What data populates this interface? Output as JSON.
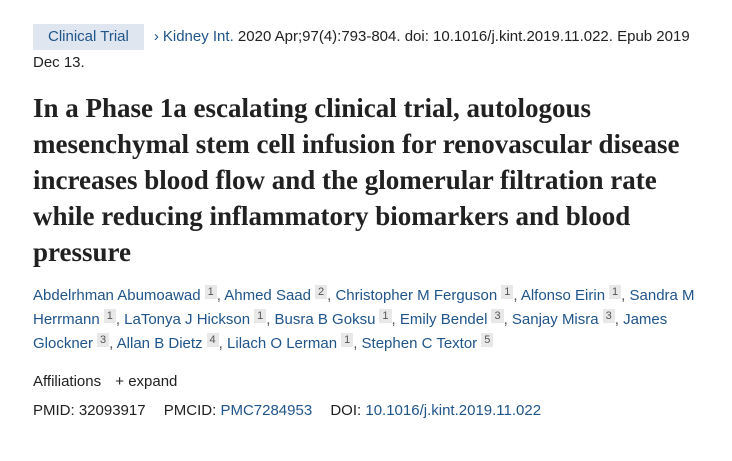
{
  "header": {
    "badge": "Clinical Trial",
    "journal": "Kidney Int.",
    "citation": " 2020 Apr;97(4):793-804. doi: 10.1016/j.kint.2019.11.022. Epub 2019 Dec 13."
  },
  "title": "In a Phase 1a escalating clinical trial, autologous mesenchymal stem cell infusion for renovascular disease increases blood flow and the glomerular filtration rate while reducing inflammatory biomarkers and blood pressure",
  "authors": [
    {
      "name": "Abdelrhman Abumoawad",
      "aff": "1"
    },
    {
      "name": "Ahmed Saad",
      "aff": "2"
    },
    {
      "name": "Christopher M Ferguson",
      "aff": "1"
    },
    {
      "name": "Alfonso Eirin",
      "aff": "1"
    },
    {
      "name": "Sandra M Herrmann",
      "aff": "1"
    },
    {
      "name": "LaTonya J Hickson",
      "aff": "1"
    },
    {
      "name": "Busra B Goksu",
      "aff": "1"
    },
    {
      "name": "Emily Bendel",
      "aff": "3"
    },
    {
      "name": "Sanjay Misra",
      "aff": "3"
    },
    {
      "name": "James Glockner",
      "aff": "3"
    },
    {
      "name": "Allan B Dietz",
      "aff": "4"
    },
    {
      "name": "Lilach O Lerman",
      "aff": "1"
    },
    {
      "name": "Stephen C Textor",
      "aff": "5"
    }
  ],
  "affiliations": {
    "label": "Affiliations",
    "expand": "+ expand"
  },
  "ids": {
    "pmid_label": "PMID:",
    "pmid": "32093917",
    "pmcid_label": "PMCID:",
    "pmcid": "PMC7284953",
    "doi_label": "DOI:",
    "doi": "10.1016/j.kint.2019.11.022"
  }
}
